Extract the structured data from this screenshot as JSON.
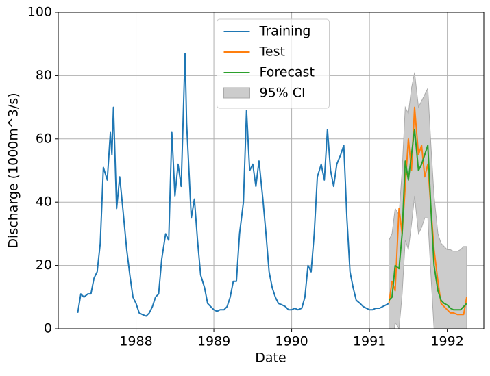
{
  "chart_data": {
    "type": "line",
    "xlabel": "Date",
    "ylabel": "Discharge (1000m^3/s)",
    "xlim": [
      1987.0,
      1992.47
    ],
    "ylim": [
      0,
      100
    ],
    "xticks": [
      1988,
      1989,
      1990,
      1991,
      1992
    ],
    "yticks": [
      0,
      20,
      40,
      60,
      80,
      100
    ],
    "grid": true,
    "legend": "upper center",
    "series": [
      {
        "name": "Training",
        "color": "#1f77b4",
        "x": [
          1987.25,
          1987.29,
          1987.33,
          1987.38,
          1987.42,
          1987.46,
          1987.5,
          1987.54,
          1987.58,
          1987.63,
          1987.67,
          1987.69,
          1987.71,
          1987.75,
          1987.79,
          1987.83,
          1987.88,
          1987.92,
          1987.96,
          1988.0,
          1988.04,
          1988.08,
          1988.13,
          1988.17,
          1988.21,
          1988.25,
          1988.29,
          1988.33,
          1988.38,
          1988.42,
          1988.46,
          1988.5,
          1988.54,
          1988.58,
          1988.63,
          1988.65,
          1988.71,
          1988.75,
          1988.79,
          1988.83,
          1988.88,
          1988.92,
          1988.96,
          1989.0,
          1989.04,
          1989.08,
          1989.13,
          1989.17,
          1989.21,
          1989.25,
          1989.29,
          1989.33,
          1989.38,
          1989.42,
          1989.46,
          1989.5,
          1989.54,
          1989.58,
          1989.63,
          1989.67,
          1989.71,
          1989.75,
          1989.79,
          1989.83,
          1989.88,
          1989.92,
          1989.96,
          1990.0,
          1990.04,
          1990.08,
          1990.13,
          1990.17,
          1990.21,
          1990.25,
          1990.29,
          1990.33,
          1990.38,
          1990.42,
          1990.46,
          1990.5,
          1990.54,
          1990.58,
          1990.63,
          1990.67,
          1990.71,
          1990.75,
          1990.79,
          1990.83,
          1990.88,
          1990.92,
          1990.96,
          1991.0,
          1991.04,
          1991.08,
          1991.13,
          1991.17,
          1991.21,
          1991.25
        ],
        "values": [
          5,
          11,
          10,
          11,
          11,
          16,
          18,
          27,
          51,
          47,
          62,
          55,
          70,
          38,
          48,
          38,
          25,
          17,
          10,
          8,
          5,
          4.5,
          4,
          5,
          7,
          10,
          11,
          22,
          30,
          28,
          62,
          42,
          52,
          45,
          87,
          65,
          35,
          41,
          28,
          17,
          13,
          8,
          7,
          6,
          5.5,
          6,
          6,
          7,
          10,
          15,
          15,
          30,
          40,
          69,
          50,
          52,
          45,
          53,
          41,
          30,
          18,
          13,
          10,
          8,
          7.5,
          7,
          6,
          6,
          6.5,
          6,
          6.5,
          10,
          20,
          18,
          30,
          48,
          52,
          47,
          63,
          50,
          45,
          52,
          55,
          58,
          35,
          18,
          13,
          9,
          8,
          7,
          6.5,
          6,
          6,
          6.5,
          6.5,
          7,
          7.5,
          8
        ]
      },
      {
        "name": "Test",
        "color": "#ff7f0e",
        "x": [
          1991.25,
          1991.29,
          1991.33,
          1991.38,
          1991.42,
          1991.46,
          1991.5,
          1991.54,
          1991.58,
          1991.63,
          1991.67,
          1991.71,
          1991.75,
          1991.79,
          1991.83,
          1991.88,
          1991.92,
          1991.96,
          1992.0,
          1992.04,
          1992.08,
          1992.13,
          1992.17,
          1992.21,
          1992.25
        ],
        "values": [
          8,
          15,
          12,
          38,
          30,
          45,
          60,
          50,
          70,
          55,
          58,
          48,
          52,
          38,
          25,
          15,
          8,
          7,
          6,
          5,
          5,
          4.5,
          4.5,
          4.5,
          10
        ]
      },
      {
        "name": "Forecast",
        "color": "#2ca02c",
        "x": [
          1991.25,
          1991.29,
          1991.33,
          1991.38,
          1991.42,
          1991.46,
          1991.5,
          1991.54,
          1991.58,
          1991.63,
          1991.67,
          1991.71,
          1991.75,
          1991.79,
          1991.83,
          1991.88,
          1991.92,
          1991.96,
          1992.0,
          1992.04,
          1992.08,
          1992.13,
          1992.17,
          1992.21,
          1992.25
        ],
        "values": [
          9,
          10,
          20,
          19,
          30,
          53,
          47,
          55,
          63,
          50,
          52,
          55,
          58,
          38,
          20,
          12,
          9,
          8,
          7.5,
          6.5,
          6,
          6,
          6,
          7,
          8
        ]
      }
    ],
    "interval": {
      "name": "95% CI",
      "color": "#cccccc",
      "edge": "#aaaaaa",
      "x": [
        1991.25,
        1991.29,
        1991.33,
        1991.38,
        1991.42,
        1991.46,
        1991.5,
        1991.54,
        1991.58,
        1991.63,
        1991.67,
        1991.71,
        1991.75,
        1991.79,
        1991.83,
        1991.88,
        1991.92,
        1991.96,
        1992.0,
        1992.04,
        1992.08,
        1992.13,
        1992.17,
        1992.21,
        1992.25
      ],
      "lower": [
        -10,
        -5,
        2,
        0,
        11,
        28,
        25,
        33,
        42,
        30,
        32,
        35,
        35,
        17,
        0,
        -8,
        -12,
        -14,
        -14,
        -15,
        -16,
        -16,
        -16,
        -15,
        -14
      ],
      "upper": [
        28,
        30,
        38,
        36,
        50,
        70,
        68,
        76,
        81,
        70,
        72,
        74,
        76,
        58,
        42,
        30,
        27,
        26,
        25,
        25,
        24.5,
        24.5,
        25,
        26,
        26
      ]
    }
  }
}
